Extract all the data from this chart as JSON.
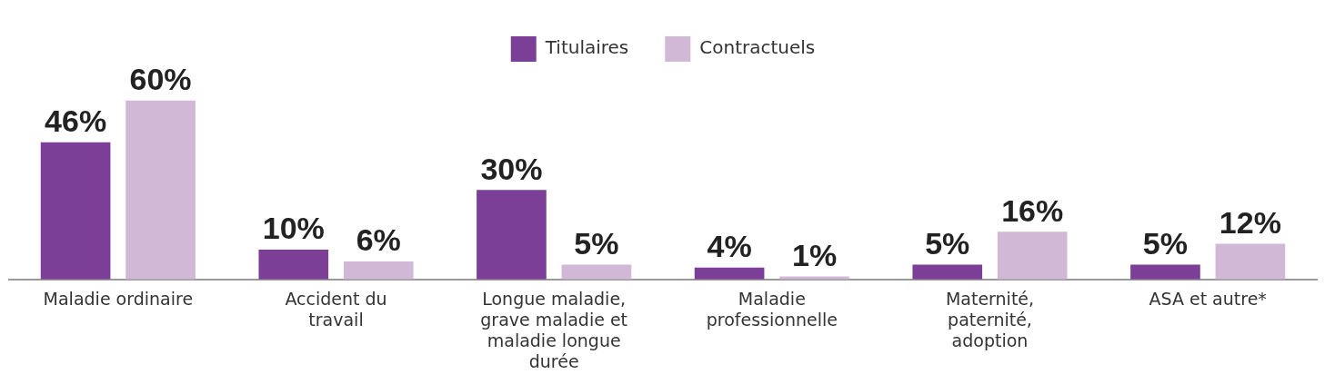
{
  "chart_data": {
    "type": "bar",
    "categories": [
      "Maladie ordinaire",
      "Accident du travail",
      "Longue maladie, grave maladie et maladie longue durée",
      "Maladie professionnelle",
      "Maternité, paternité, adoption",
      "ASA et autre*"
    ],
    "series": [
      {
        "name": "Titulaires",
        "color": "#7b3f98",
        "values": [
          46,
          10,
          30,
          4,
          5,
          5
        ],
        "value_labels": [
          "46%",
          "10%",
          "30%",
          "4%",
          "5%",
          "5%"
        ]
      },
      {
        "name": "Contractuels",
        "color": "#d1b8d6",
        "values": [
          60,
          6,
          5,
          1,
          16,
          12
        ],
        "value_labels": [
          "60%",
          "6%",
          "5%",
          "1%",
          "16%",
          "12%"
        ]
      }
    ],
    "legend": "top"
  }
}
